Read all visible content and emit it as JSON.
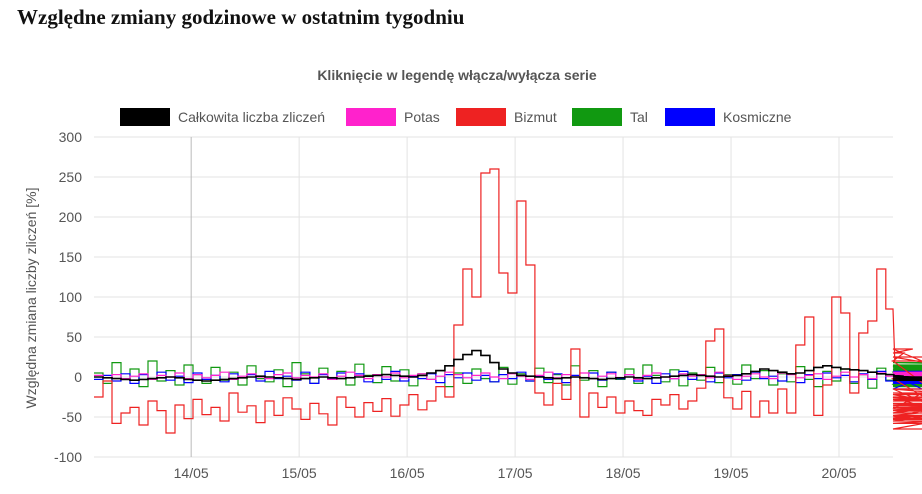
{
  "page": {
    "title": "Względne zmiany godzinowe w ostatnim tygodniu"
  },
  "chart_data": {
    "type": "line",
    "title": "Kliknięcie w legendę włącza/wyłącza serie",
    "ylabel": "Względna zmiana liczby zliczeń [%]",
    "xlabel": "",
    "ylim": [
      -100,
      300
    ],
    "yticks": [
      300,
      250,
      200,
      150,
      100,
      50,
      0,
      -50,
      -100
    ],
    "x_unit": "days since 13/05 00:00",
    "xlim_days": [
      0.1,
      7.5
    ],
    "xticks": [
      {
        "label": "14/05",
        "day": 1
      },
      {
        "label": "15/05",
        "day": 2
      },
      {
        "label": "16/05",
        "day": 3
      },
      {
        "label": "17/05",
        "day": 4
      },
      {
        "label": "18/05",
        "day": 5
      },
      {
        "label": "19/05",
        "day": 6
      },
      {
        "label": "20/05",
        "day": 7
      }
    ],
    "grid": true,
    "legend_position": "top",
    "series": [
      {
        "name": "Całkowita liczba zliczeń",
        "color": "#000000",
        "start_day": 0.1,
        "step_hours": 2,
        "values": [
          0,
          -1,
          -2,
          -3,
          -4,
          -3,
          -2,
          -1,
          0,
          -1,
          -3,
          -4,
          -5,
          -4,
          -3,
          -2,
          -1,
          0,
          1,
          0,
          -1,
          -2,
          -3,
          -2,
          -1,
          0,
          -1,
          -2,
          -1,
          0,
          1,
          2,
          3,
          2,
          1,
          0,
          2,
          5,
          8,
          14,
          22,
          28,
          33,
          27,
          18,
          10,
          5,
          2,
          1,
          0,
          -1,
          -2,
          -1,
          0,
          -1,
          -2,
          -3,
          -2,
          -1,
          0,
          -1,
          -2,
          -1,
          0,
          1,
          2,
          3,
          2,
          1,
          0,
          1,
          2,
          4,
          7,
          10,
          8,
          6,
          4,
          5,
          8,
          12,
          14,
          12,
          10,
          9,
          8,
          6,
          4,
          3,
          2,
          1,
          0,
          -1,
          -2,
          -3,
          -2,
          -1,
          0,
          -1,
          -2,
          -3,
          -2,
          -1,
          0,
          -1,
          -2,
          -3,
          -4,
          -3,
          -2,
          -1,
          0,
          -1,
          -2,
          -1,
          0,
          -1,
          -2,
          -1,
          0,
          -1,
          -2,
          -1,
          0,
          -1,
          -2,
          -1,
          0,
          -1,
          -2,
          -1,
          0
        ]
      },
      {
        "name": "Potas",
        "color": "#ff22cc",
        "start_day": 0.1,
        "step_hours": 2,
        "values": [
          2,
          -1,
          3,
          -2,
          1,
          4,
          -3,
          2,
          0,
          5,
          -2,
          3,
          -1,
          2,
          6,
          -3,
          1,
          4,
          0,
          -2,
          3,
          5,
          -1,
          2,
          0,
          4,
          -3,
          1,
          6,
          2,
          -2,
          3,
          0,
          5,
          -1,
          2,
          4,
          -3,
          1,
          6,
          3,
          -1,
          2,
          5,
          0,
          -2,
          4,
          1,
          -3,
          2,
          6,
          -1,
          3,
          0,
          5,
          -2,
          1,
          4,
          -1,
          3,
          -3,
          2,
          5,
          0,
          -2,
          4,
          1,
          3,
          -1,
          6,
          2,
          -3,
          1,
          4,
          0,
          -2,
          5,
          3,
          -1,
          2,
          4,
          -3,
          1,
          6,
          0,
          3,
          -2,
          5,
          1,
          -1,
          4,
          2,
          -3,
          0,
          6,
          -1,
          3,
          -2,
          5,
          1,
          4,
          0,
          -3,
          2,
          5,
          -1,
          3,
          1,
          -2,
          4,
          0,
          6,
          -2,
          3,
          1,
          -1,
          4,
          2,
          -3,
          5,
          0,
          2,
          -1,
          3,
          6,
          1
        ]
      },
      {
        "name": "Bizmut",
        "color": "#ee2222",
        "start_day": 0.1,
        "step_hours": 2,
        "values": [
          -25,
          -5,
          -58,
          -45,
          -38,
          -60,
          -30,
          -42,
          -70,
          -35,
          -52,
          -28,
          -47,
          -38,
          -55,
          -20,
          -44,
          -36,
          -57,
          -30,
          -48,
          -26,
          -40,
          -53,
          -33,
          -46,
          -60,
          -25,
          -38,
          -50,
          -32,
          -43,
          -27,
          -49,
          -35,
          -22,
          -41,
          -30,
          -12,
          -25,
          65,
          135,
          100,
          255,
          260,
          130,
          105,
          220,
          140,
          -20,
          -35,
          -8,
          -28,
          35,
          -50,
          -20,
          -38,
          -25,
          -45,
          -30,
          -42,
          -48,
          -28,
          -35,
          -22,
          -40,
          -30,
          -14,
          45,
          60,
          -26,
          -40,
          -18,
          -50,
          -30,
          -45,
          -15,
          -45,
          40,
          75,
          -48,
          -10,
          100,
          80,
          -20,
          55,
          70,
          135,
          85,
          20,
          30,
          35,
          20,
          -15,
          -40,
          -2,
          -50,
          -30,
          -15,
          -25,
          -65,
          -40,
          -52,
          -33,
          -45,
          -22,
          -55,
          -28,
          -38,
          -48,
          -26,
          -40,
          -53,
          -20,
          -33,
          -45,
          25,
          -30,
          -15,
          -42,
          -50,
          -28,
          -35,
          -58,
          -36,
          -38,
          -40
        ]
      },
      {
        "name": "Tal",
        "color": "#119911",
        "start_day": 0.1,
        "step_hours": 2,
        "values": [
          5,
          -8,
          18,
          -2,
          10,
          -12,
          20,
          -5,
          8,
          -10,
          15,
          3,
          -8,
          12,
          -4,
          6,
          -10,
          14,
          -2,
          -6,
          9,
          -12,
          18,
          4,
          -8,
          11,
          -3,
          7,
          -10,
          16,
          2,
          -7,
          13,
          -5,
          9,
          -11,
          4,
          -3,
          8,
          -12,
          5,
          -8,
          10,
          -2,
          -6,
          12,
          -9,
          4,
          -5,
          11,
          -7,
          3,
          -10,
          14,
          -4,
          8,
          -12,
          6,
          -3,
          10,
          -8,
          15,
          2,
          -6,
          9,
          -11,
          5,
          -4,
          12,
          -7,
          3,
          -9,
          15,
          -2,
          8,
          -10,
          4,
          -6,
          13,
          -3,
          -12,
          7,
          -5,
          10,
          -8,
          3,
          -14,
          11,
          -4,
          6,
          -9,
          14,
          -2,
          -7,
          10,
          -5,
          8,
          -11,
          4,
          -6,
          12,
          -3,
          9,
          -10,
          5,
          -8,
          14,
          -2,
          7,
          -12,
          3,
          -5,
          11,
          -9,
          6,
          -4,
          13,
          -7,
          2,
          -10,
          15,
          -3,
          8,
          18,
          10
        ]
      },
      {
        "name": "Kosmiczne",
        "color": "#0000ff",
        "start_day": 0.1,
        "step_hours": 2,
        "values": [
          -3,
          2,
          -5,
          4,
          -8,
          3,
          -2,
          6,
          -4,
          1,
          -7,
          5,
          -3,
          2,
          -6,
          4,
          -1,
          3,
          -5,
          7,
          -2,
          1,
          -4,
          6,
          -8,
          3,
          -2,
          5,
          -1,
          4,
          -6,
          2,
          -3,
          7,
          -5,
          1,
          -2,
          4,
          -7,
          3,
          -1,
          5,
          -4,
          2,
          -6,
          3,
          -2,
          6,
          -5,
          1,
          -3,
          4,
          -7,
          2,
          -1,
          5,
          -4,
          6,
          -2,
          3,
          -5,
          1,
          -8,
          4,
          -2,
          7,
          -3,
          2,
          -6,
          5,
          -1,
          3,
          -4,
          6,
          -2,
          1,
          -5,
          4,
          -7,
          3,
          -2,
          5,
          -1,
          2,
          -6,
          4,
          -3,
          7,
          -5,
          1,
          -2,
          3,
          -15,
          4,
          -6,
          2,
          -1,
          5,
          -4,
          3,
          -7,
          6,
          -2,
          1,
          -5,
          4,
          -3,
          2,
          -6,
          5,
          -1,
          3,
          -4,
          7,
          -2,
          1,
          -5,
          3,
          -8,
          4,
          -2,
          6,
          -3,
          1,
          -5,
          4,
          -2,
          3
        ]
      }
    ]
  }
}
